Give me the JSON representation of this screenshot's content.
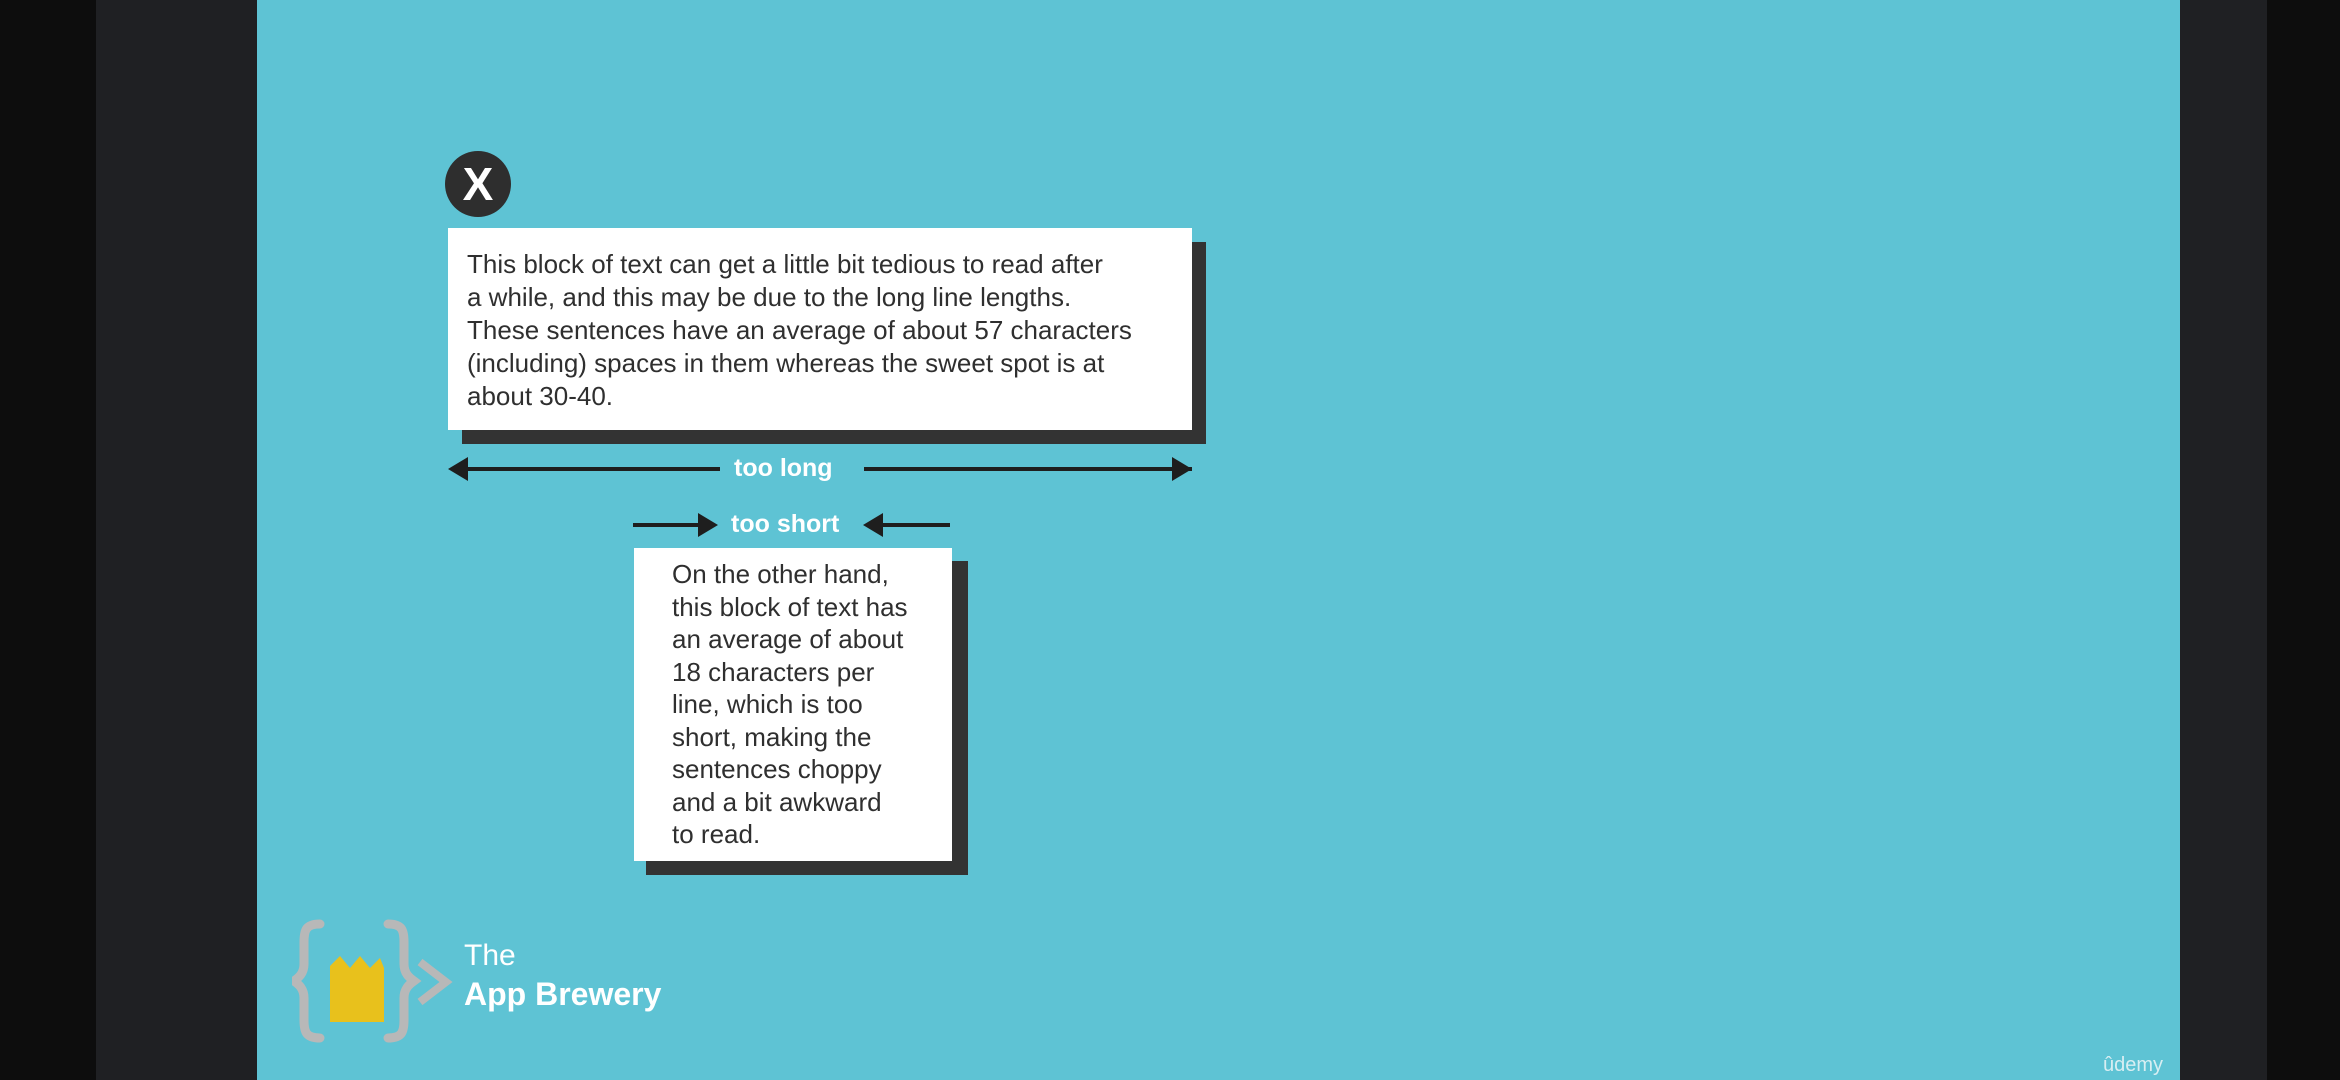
{
  "slide": {
    "x_badge": "X",
    "long_block": {
      "lines": [
        "This block of text can get a little bit tedious to read after",
        "a while, and this may be due to the long line lengths.",
        "These sentences have an average of about 57 characters",
        "(including) spaces in them whereas the sweet spot is at",
        "about 30-40."
      ]
    },
    "too_long_label": "too long",
    "too_short_label": "too short",
    "short_block": {
      "lines": [
        "On the other hand,",
        "this block of text has",
        "an average of about",
        "18 characters per",
        "line, which is too",
        "short, making the",
        "sentences choppy",
        "and a bit awkward",
        "to read."
      ]
    },
    "logo": {
      "line1": "The",
      "line2": "App Brewery"
    },
    "watermark": "ûdemy"
  },
  "colors": {
    "slide_background": "#5ec3d4",
    "card": "#ffffff",
    "card_shadow": "#333333",
    "arrow": "#1e1e1e",
    "logo_yellow": "#e8c11c",
    "logo_gray": "#b8b8b8"
  }
}
